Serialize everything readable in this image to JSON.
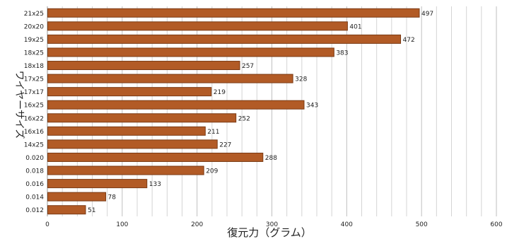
{
  "chart_data": {
    "type": "bar",
    "orientation": "horizontal",
    "categories": [
      "21x25",
      "20x20",
      "19x25",
      "18x25",
      "18x18",
      "17x25",
      "17x17",
      "16x25",
      "16x22",
      "16x16",
      "14x25",
      "0.020",
      "0.018",
      "0.016",
      "0.014",
      "0.012"
    ],
    "values": [
      497,
      401,
      472,
      383,
      257,
      328,
      219,
      343,
      252,
      211,
      227,
      288,
      209,
      133,
      78,
      51
    ],
    "xlabel": "復元力（グラム）",
    "ylabel": "ワイヤーサイズ",
    "xlim": [
      0,
      600
    ],
    "xticks": [
      0,
      100,
      200,
      300,
      400,
      500,
      600
    ],
    "grid": true,
    "bar_color": "#b25b26",
    "bar_edge_color": "#7a3a14",
    "data_labels": true
  }
}
